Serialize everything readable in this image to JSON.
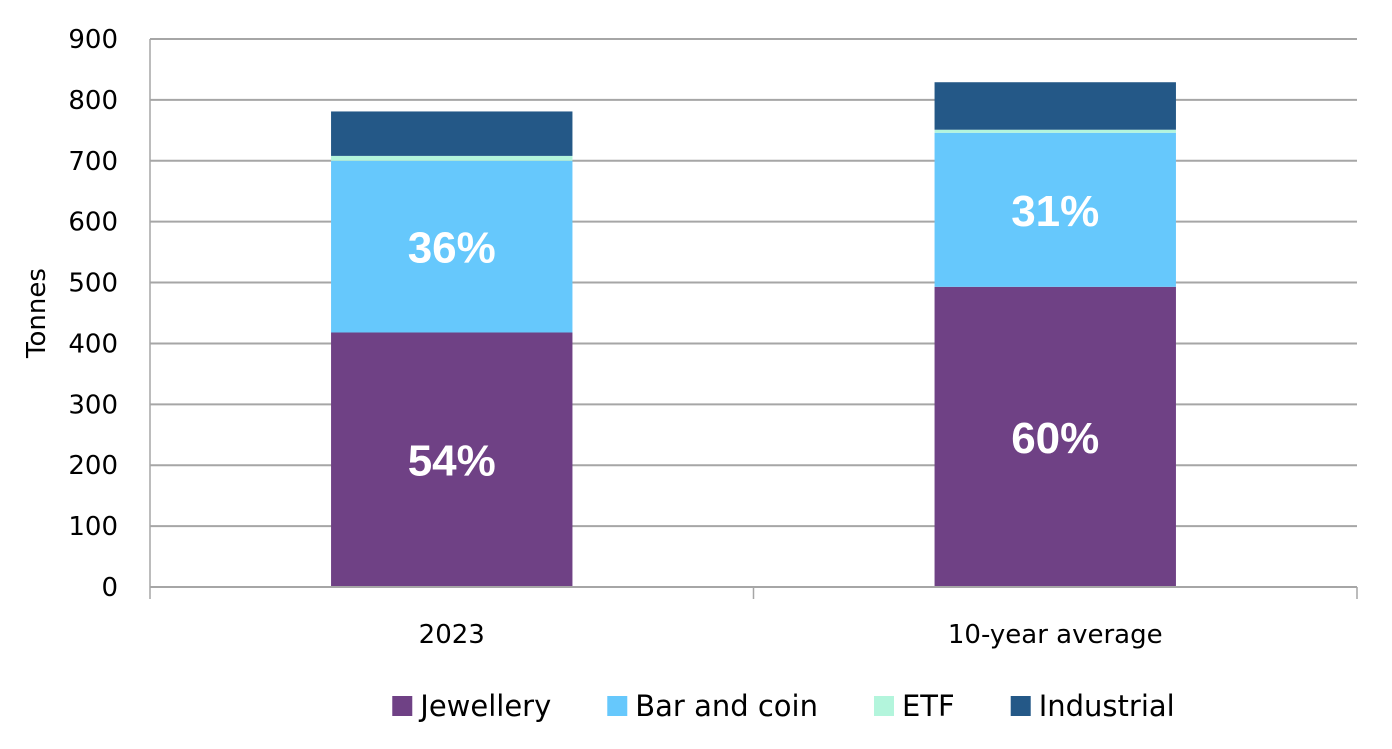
{
  "chart_data": {
    "type": "bar",
    "stacked": true,
    "categories": [
      "2023",
      "10-year average"
    ],
    "series": [
      {
        "name": "Jewellery",
        "color": "#6f4185",
        "values": [
          418,
          493
        ],
        "labels": [
          "54%",
          "60%"
        ]
      },
      {
        "name": "Bar and coin",
        "color": "#66c8fc",
        "values": [
          282,
          253
        ],
        "labels": [
          "36%",
          "31%"
        ]
      },
      {
        "name": "ETF",
        "color": "#b3f5dc",
        "values": [
          8,
          5
        ],
        "labels": [
          "",
          ""
        ]
      },
      {
        "name": "Industrial",
        "color": "#245887",
        "values": [
          73,
          78
        ],
        "labels": [
          "",
          ""
        ]
      }
    ],
    "ylabel": "Tonnes",
    "xlabel": "",
    "ylim": [
      0,
      900
    ],
    "yticks": [
      0,
      100,
      200,
      300,
      400,
      500,
      600,
      700,
      800,
      900
    ],
    "grid": true,
    "legend_position": "bottom"
  }
}
